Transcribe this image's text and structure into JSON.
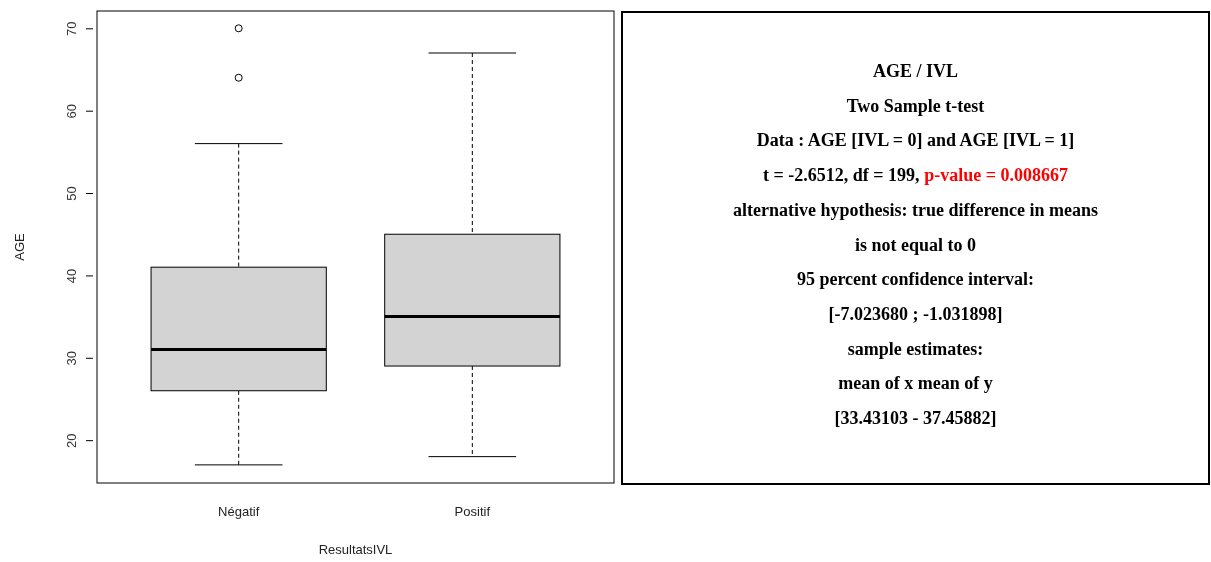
{
  "chart_data": [
    {
      "type": "box",
      "xlabel": "ResultatsIVL",
      "ylabel": "AGE",
      "categories": [
        "Négatif",
        "Positif"
      ],
      "color": "#d3d3d3",
      "boxes": [
        {
          "low": 17,
          "q1": 26,
          "median": 31,
          "q3": 41,
          "high": 56,
          "outliers": [
            64,
            70
          ]
        },
        {
          "low": 18,
          "q1": 29,
          "median": 35,
          "q3": 45,
          "high": 67
        }
      ],
      "ylim": [
        14.8,
        72.1
      ],
      "yticks": [
        20,
        30,
        40,
        50,
        60,
        70
      ]
    },
    {
      "type": "other",
      "title": "AGE / IVL",
      "annotations": [
        "Two Sample t-test",
        "Data : AGE [IVL = 0] and AGE [IVL = 1]",
        "t = -2.6512, df = 199,",
        "p-value = 0.008667",
        "alternative hypothesis: true difference in means",
        "is not equal to 0",
        "95 percent confidence interval:",
        "[-7.023680 ; -1.031898]",
        "sample estimates:",
        "mean of x mean of y",
        "[33.43103 - 37.45882]"
      ]
    }
  ]
}
